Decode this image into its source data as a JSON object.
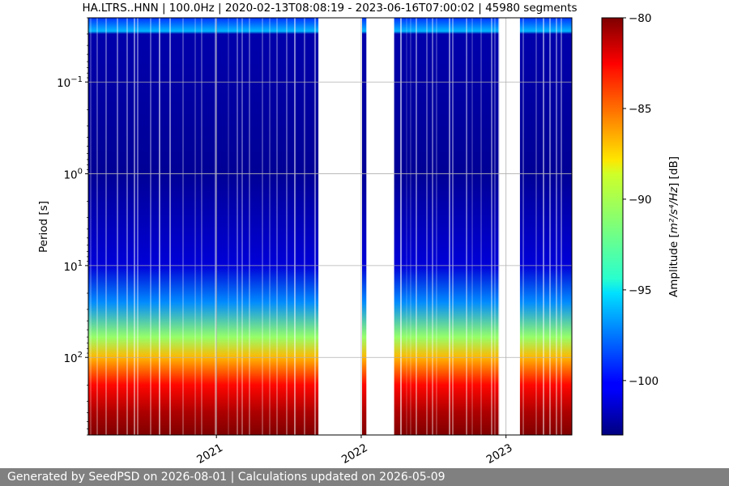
{
  "chart_data": {
    "type": "heatmap",
    "title": "HA.LTRS..HNN | 100.0Hz | 2020-02-13T08:08:19 - 2023-06-16T07:00:02 | 45980 segments",
    "ylabel": "Period [s]",
    "colorbar_label_prefix": "Amplitude [",
    "colorbar_label_unit": "m²/s⁴/Hz",
    "colorbar_label_suffix": "] [dB]",
    "y_scale": "log",
    "y_inverted": true,
    "ylim": [
      0.02,
      700
    ],
    "xlim": [
      "2020-02-13",
      "2023-06-16"
    ],
    "x_ticks": [
      {
        "date": "2021-01-01",
        "label": "2021"
      },
      {
        "date": "2022-01-01",
        "label": "2022"
      },
      {
        "date": "2023-01-01",
        "label": "2023"
      }
    ],
    "y_ticks": [
      {
        "value": 0.1,
        "base": "10",
        "exp": "−1"
      },
      {
        "value": 1,
        "base": "10",
        "exp": "0"
      },
      {
        "value": 10,
        "base": "10",
        "exp": "1"
      },
      {
        "value": 100,
        "base": "10",
        "exp": "2"
      }
    ],
    "color_range": [
      -103,
      -80
    ],
    "colormap": "jet",
    "colorbar_ticks": [
      -80,
      -85,
      -90,
      -95,
      -100
    ],
    "colorbar_tick_labels": [
      "−80",
      "−85",
      "−90",
      "−95",
      "−100"
    ],
    "data_gaps": [
      {
        "start": "2021-09-15",
        "end": "2022-01-03"
      },
      {
        "start": "2022-01-14",
        "end": "2022-03-25"
      },
      {
        "start": "2022-12-15",
        "end": "2023-02-05"
      }
    ],
    "grid": true,
    "amplitude_profile": [
      {
        "period": 0.02,
        "db": -99
      },
      {
        "period": 0.028,
        "db": -96
      },
      {
        "period": 0.03,
        "db": -102
      },
      {
        "period": 1,
        "db": -102.5
      },
      {
        "period": 10,
        "db": -101
      },
      {
        "period": 25,
        "db": -97
      },
      {
        "period": 60,
        "db": -91
      },
      {
        "period": 100,
        "db": -87
      },
      {
        "period": 200,
        "db": -83
      },
      {
        "period": 400,
        "db": -81
      },
      {
        "period": 700,
        "db": -80
      }
    ]
  },
  "footer": {
    "text": "Generated by SeedPSD on 2026-08-01 | Calculations updated on 2026-05-09"
  }
}
